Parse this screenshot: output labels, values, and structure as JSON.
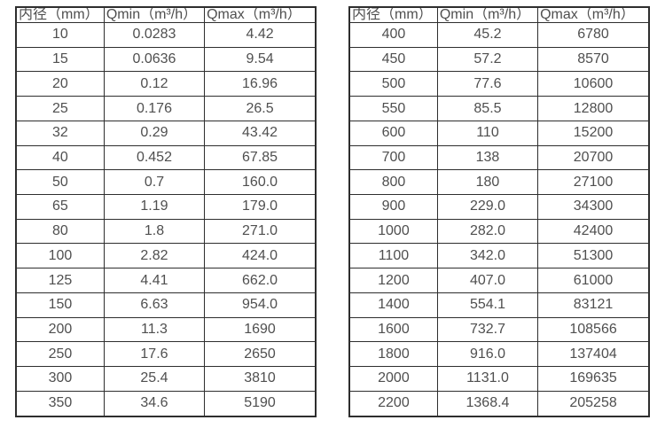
{
  "page": {
    "background": "#ffffff",
    "text_color": "#4f4f4f",
    "border_color": "#2e2e2e"
  },
  "chart_data": [
    {
      "type": "table",
      "title": "",
      "columns": [
        "内径（mm）",
        "Qmin（m³/h）",
        "Qmax（m³/h）"
      ],
      "rows": [
        [
          "10",
          "0.0283",
          "4.42"
        ],
        [
          "15",
          "0.0636",
          "9.54"
        ],
        [
          "20",
          "0.12",
          "16.96"
        ],
        [
          "25",
          "0.176",
          "26.5"
        ],
        [
          "32",
          "0.29",
          "43.42"
        ],
        [
          "40",
          "0.452",
          "67.85"
        ],
        [
          "50",
          "0.7",
          "160.0"
        ],
        [
          "65",
          "1.19",
          "179.0"
        ],
        [
          "80",
          "1.8",
          "271.0"
        ],
        [
          "100",
          "2.82",
          "424.0"
        ],
        [
          "125",
          "4.41",
          "662.0"
        ],
        [
          "150",
          "6.63",
          "954.0"
        ],
        [
          "200",
          "11.3",
          "1690"
        ],
        [
          "250",
          "17.6",
          "2650"
        ],
        [
          "300",
          "25.4",
          "3810"
        ],
        [
          "350",
          "34.6",
          "5190"
        ]
      ]
    },
    {
      "type": "table",
      "title": "",
      "columns": [
        "内径（mm）",
        "Qmin（m³/h）",
        "Qmax（m³/h）"
      ],
      "rows": [
        [
          "400",
          "45.2",
          "6780"
        ],
        [
          "450",
          "57.2",
          "8570"
        ],
        [
          "500",
          "77.6",
          "10600"
        ],
        [
          "550",
          "85.5",
          "12800"
        ],
        [
          "600",
          "110",
          "15200"
        ],
        [
          "700",
          "138",
          "20700"
        ],
        [
          "800",
          "180",
          "27100"
        ],
        [
          "900",
          "229.0",
          "34300"
        ],
        [
          "1000",
          "282.0",
          "42400"
        ],
        [
          "1100",
          "342.0",
          "51300"
        ],
        [
          "1200",
          "407.0",
          "61000"
        ],
        [
          "1400",
          "554.1",
          "83121"
        ],
        [
          "1600",
          "732.7",
          "108566"
        ],
        [
          "1800",
          "916.0",
          "137404"
        ],
        [
          "2000",
          "1131.0",
          "169635"
        ],
        [
          "2200",
          "1368.4",
          "205258"
        ]
      ]
    }
  ]
}
